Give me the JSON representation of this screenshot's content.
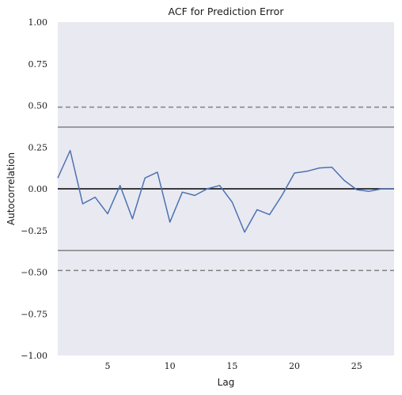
{
  "chart_data": {
    "type": "line",
    "title": "ACF for Prediction Error",
    "xlabel": "Lag",
    "ylabel": "Autocorrelation",
    "xlim": [
      1,
      28
    ],
    "ylim": [
      -1.0,
      1.0
    ],
    "xticks": [
      5,
      10,
      15,
      20,
      25
    ],
    "xtick_labels": [
      "5",
      "10",
      "15",
      "20",
      "25"
    ],
    "yticks": [
      -1.0,
      -0.75,
      -0.5,
      -0.25,
      0.0,
      0.25,
      0.5,
      0.75,
      1.0
    ],
    "ytick_labels": [
      "−1.00",
      "−0.75",
      "−0.50",
      "−0.25",
      "0.00",
      "0.25",
      "0.50",
      "0.75",
      "1.00"
    ],
    "grid": false,
    "background_color": "#e9e9f2",
    "series": [
      {
        "color": "#4c72b0",
        "x": [
          1,
          2,
          3,
          4,
          5,
          6,
          7,
          8,
          9,
          10,
          11,
          12,
          13,
          14,
          15,
          16,
          17,
          18,
          19,
          20,
          21,
          22,
          23,
          24,
          25,
          26,
          27,
          28
        ],
        "y": [
          0.065,
          0.23,
          -0.09,
          -0.05,
          -0.15,
          0.02,
          -0.18,
          0.065,
          0.1,
          -0.2,
          -0.02,
          -0.04,
          0.0,
          0.02,
          -0.08,
          -0.26,
          -0.125,
          -0.155,
          -0.04,
          0.095,
          0.105,
          0.125,
          0.13,
          0.05,
          -0.005,
          -0.015,
          0.0,
          0.0
        ]
      }
    ],
    "reference_lines": [
      {
        "y": 0.0,
        "style": "solid",
        "color": "#000000"
      },
      {
        "y": 0.37,
        "style": "solid",
        "color": "#808080"
      },
      {
        "y": -0.37,
        "style": "solid",
        "color": "#808080"
      },
      {
        "y": 0.49,
        "style": "dashed",
        "color": "#808080"
      },
      {
        "y": -0.49,
        "style": "dashed",
        "color": "#808080"
      }
    ]
  }
}
